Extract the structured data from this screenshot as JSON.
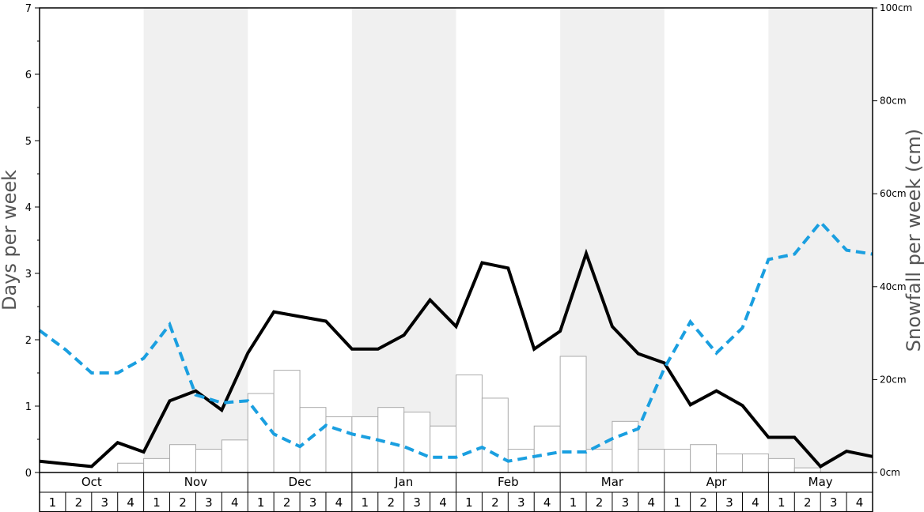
{
  "chart_data": {
    "type": "bar",
    "months": [
      "Oct",
      "Nov",
      "Dec",
      "Jan",
      "Feb",
      "Mar",
      "Apr",
      "May"
    ],
    "weeks": [
      "1",
      "2",
      "3",
      "4"
    ],
    "ylabel": "Days per week",
    "y2label": "Snowfall per week (cm)",
    "ylim": [
      0,
      7
    ],
    "y_ticks": [
      "0",
      "1",
      "2",
      "3",
      "4",
      "5",
      "6",
      "7"
    ],
    "y2lim": [
      0,
      100
    ],
    "y2_ticks": [
      "0cm",
      "20cm",
      "40cm",
      "60cm",
      "80cm",
      "100cm"
    ],
    "snowfall_cm": [
      0,
      0,
      0,
      2,
      3,
      6,
      5,
      7,
      17,
      22,
      14,
      12,
      12,
      14,
      13,
      10,
      21,
      16,
      5,
      10,
      25,
      5,
      11,
      5,
      5,
      6,
      4,
      4,
      3,
      1,
      0,
      0
    ],
    "series": [
      {
        "style": "solid-black",
        "values": [
          0.17,
          0.13,
          0.09,
          0.45,
          0.31,
          1.08,
          1.23,
          0.94,
          1.8,
          2.42,
          2.35,
          2.28,
          1.86,
          1.86,
          2.07,
          2.6,
          2.2,
          3.16,
          3.08,
          1.86,
          2.13,
          3.3,
          2.2,
          1.79,
          1.65,
          1.02,
          1.23,
          1.01,
          0.53,
          0.53,
          0.09,
          0.32,
          0.24
        ]
      },
      {
        "style": "dashed-blue",
        "values": [
          2.14,
          1.85,
          1.5,
          1.5,
          1.72,
          2.23,
          1.17,
          1.05,
          1.08,
          0.58,
          0.39,
          0.71,
          0.58,
          0.49,
          0.39,
          0.23,
          0.23,
          0.38,
          0.17,
          0.24,
          0.31,
          0.31,
          0.51,
          0.66,
          1.57,
          2.27,
          1.8,
          2.18,
          3.21,
          3.29,
          3.77,
          3.35,
          3.29
        ]
      }
    ],
    "colors": {
      "shade": "#f0f0f0",
      "bar_fill": "#ffffff",
      "bar_stroke": "#aaaaaa",
      "solid_line": "#000000",
      "dashed_line": "#1a9fe0"
    }
  }
}
